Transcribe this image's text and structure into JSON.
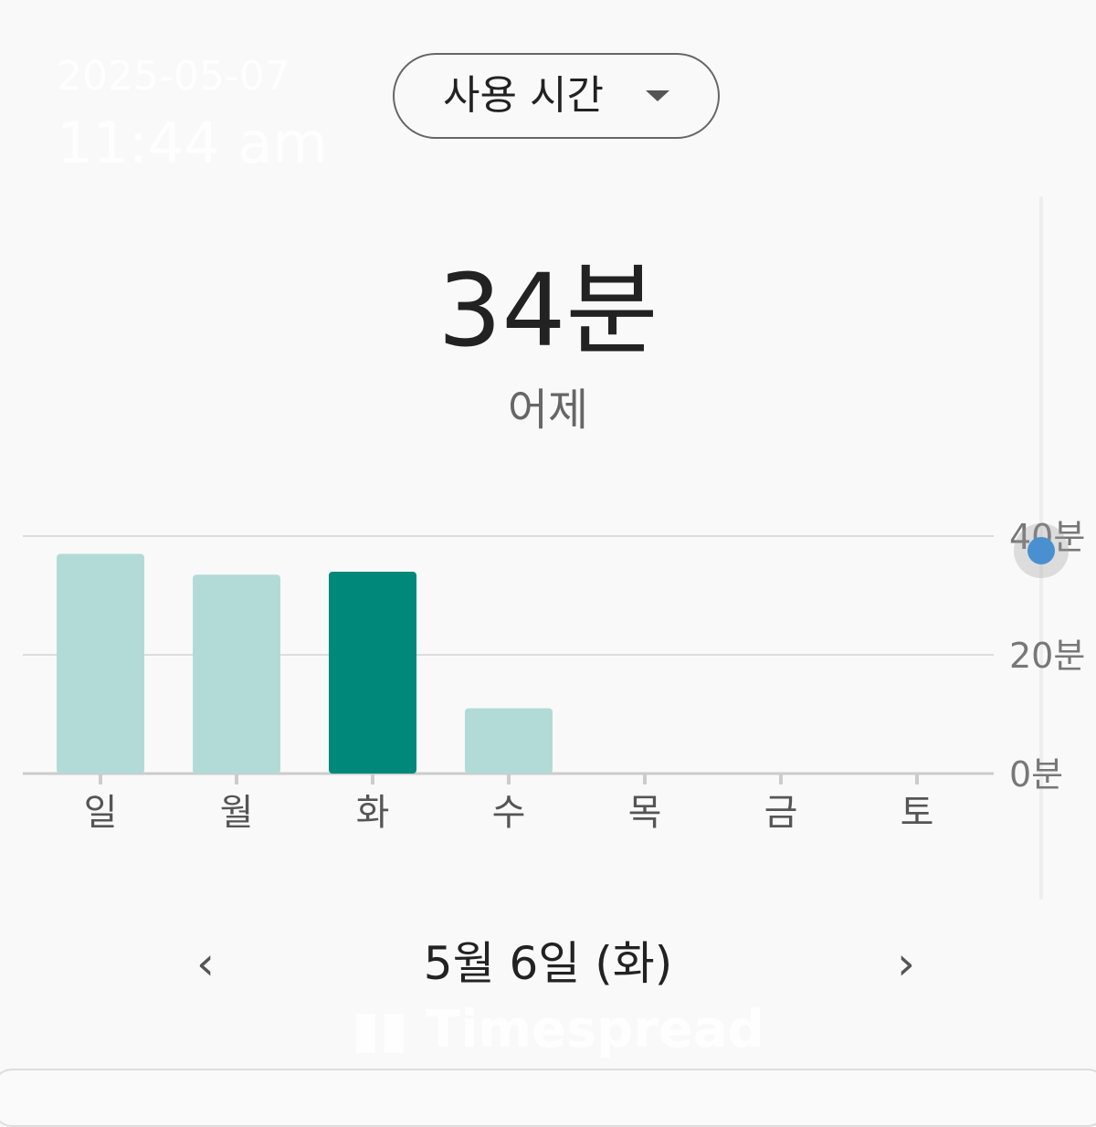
{
  "stamp": {
    "date": "2025-05-07",
    "time": "11:44 am"
  },
  "dropdown": {
    "label": "사용 시간",
    "icon": "caret-down-icon"
  },
  "summary": {
    "total": "34분",
    "period": "어제"
  },
  "chart_data": {
    "type": "bar",
    "categories": [
      "일",
      "월",
      "화",
      "수",
      "목",
      "금",
      "토"
    ],
    "values": [
      37,
      33.5,
      34,
      11,
      0,
      0,
      0
    ],
    "highlight_index": 2,
    "y_ticks": [
      "0분",
      "20분",
      "40분"
    ],
    "ylim": [
      0,
      40
    ],
    "grid": true,
    "colors": {
      "normal": "#b2dbd8",
      "selected": "#00897b"
    }
  },
  "date_nav": {
    "label": "5월 6일 (화)",
    "prev": "‹",
    "next": "›"
  },
  "watermark": "Timespread"
}
